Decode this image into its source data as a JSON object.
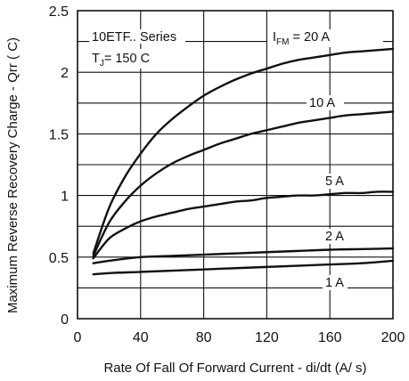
{
  "chart_data": {
    "type": "line",
    "xlabel": "Rate Of Fall Of Forward Current - di/dt (A/ s)",
    "ylabel": "Maximum Reverse Recovery Charge - Qrr ( C)",
    "xlim": [
      0,
      200
    ],
    "ylim": [
      0,
      2.5
    ],
    "x_ticks": [
      "0",
      "40",
      "80",
      "120",
      "160",
      "200"
    ],
    "y_ticks": [
      "0",
      "0.5",
      "1",
      "1.5",
      "2",
      "2.5"
    ],
    "grid": true,
    "annotations": {
      "series_label": "10ETF.. Series",
      "tj_main": "T",
      "tj_sub": "J",
      "tj_value": "= 150  C",
      "ifm_main": "I",
      "ifm_sub": "FM",
      "ifm_value": " = 20 A"
    },
    "series": [
      {
        "name": "20 A",
        "label": "",
        "x": [
          10,
          20,
          30,
          40,
          50,
          60,
          70,
          80,
          90,
          100,
          110,
          120,
          130,
          140,
          150,
          160,
          170,
          180,
          190,
          200
        ],
        "y": [
          0.53,
          0.9,
          1.15,
          1.34,
          1.5,
          1.62,
          1.72,
          1.81,
          1.88,
          1.94,
          1.99,
          2.03,
          2.07,
          2.1,
          2.12,
          2.14,
          2.16,
          2.17,
          2.18,
          2.19
        ]
      },
      {
        "name": "10 A",
        "label": "10 A",
        "x": [
          10,
          20,
          30,
          40,
          50,
          60,
          70,
          80,
          90,
          100,
          110,
          120,
          130,
          140,
          150,
          160,
          170,
          180,
          190,
          200
        ],
        "y": [
          0.51,
          0.78,
          0.95,
          1.08,
          1.18,
          1.26,
          1.32,
          1.37,
          1.42,
          1.46,
          1.5,
          1.53,
          1.56,
          1.59,
          1.61,
          1.63,
          1.65,
          1.66,
          1.67,
          1.68
        ]
      },
      {
        "name": "5 A",
        "label": "5 A",
        "x": [
          10,
          20,
          30,
          40,
          50,
          60,
          70,
          80,
          90,
          100,
          110,
          120,
          130,
          140,
          150,
          160,
          170,
          180,
          190,
          200
        ],
        "y": [
          0.49,
          0.65,
          0.73,
          0.79,
          0.83,
          0.86,
          0.89,
          0.91,
          0.93,
          0.95,
          0.96,
          0.98,
          0.99,
          1.0,
          1.0,
          1.01,
          1.02,
          1.02,
          1.03,
          1.03
        ]
      },
      {
        "name": "2 A",
        "label": "2 A",
        "x": [
          10,
          20,
          40,
          60,
          80,
          100,
          120,
          140,
          160,
          180,
          200
        ],
        "y": [
          0.45,
          0.47,
          0.5,
          0.51,
          0.52,
          0.53,
          0.54,
          0.55,
          0.56,
          0.565,
          0.57
        ]
      },
      {
        "name": "1 A",
        "label": "1 A",
        "x": [
          10,
          20,
          40,
          60,
          80,
          100,
          120,
          140,
          160,
          180,
          200
        ],
        "y": [
          0.36,
          0.37,
          0.38,
          0.39,
          0.4,
          0.41,
          0.42,
          0.43,
          0.44,
          0.45,
          0.47
        ]
      }
    ]
  }
}
